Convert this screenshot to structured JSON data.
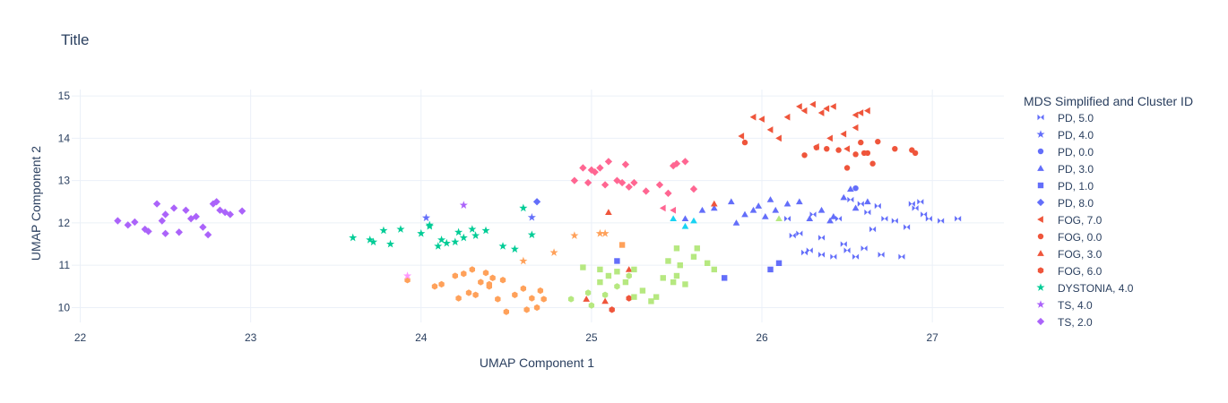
{
  "chart_data": {
    "type": "scatter",
    "title": "Title",
    "xlabel": "UMAP Component 1",
    "ylabel": "UMAP Component 2",
    "xlim": [
      21.95,
      27.42
    ],
    "ylim": [
      9.65,
      15.15
    ],
    "xticks": [
      22,
      23,
      24,
      25,
      26,
      27
    ],
    "yticks": [
      10,
      11,
      12,
      13,
      14,
      15
    ],
    "grid": true,
    "legend_title": "MDS Simplified and Cluster ID",
    "legend_position": "right",
    "series": [
      {
        "name": "PD, 5.0",
        "color": "#636efa",
        "symbol": "bowtie",
        "points": [
          [
            26.15,
            12.1
          ],
          [
            26.18,
            11.7
          ],
          [
            26.22,
            11.75
          ],
          [
            26.25,
            11.3
          ],
          [
            26.3,
            12.2
          ],
          [
            26.35,
            11.65
          ],
          [
            26.42,
            11.2
          ],
          [
            26.45,
            12.1
          ],
          [
            26.48,
            11.5
          ],
          [
            26.52,
            12.55
          ],
          [
            26.55,
            11.2
          ],
          [
            26.58,
            12.45
          ],
          [
            26.6,
            11.4
          ],
          [
            26.62,
            12.25
          ],
          [
            26.65,
            11.85
          ],
          [
            26.68,
            12.4
          ],
          [
            26.7,
            11.25
          ],
          [
            26.72,
            12.1
          ],
          [
            26.78,
            12.05
          ],
          [
            26.82,
            11.2
          ],
          [
            26.85,
            11.9
          ],
          [
            26.88,
            12.45
          ],
          [
            26.9,
            12.35
          ],
          [
            26.93,
            12.5
          ],
          [
            26.95,
            12.2
          ],
          [
            26.98,
            12.1
          ],
          [
            27.05,
            12.05
          ],
          [
            27.15,
            12.1
          ],
          [
            26.28,
            11.35
          ],
          [
            26.35,
            11.25
          ],
          [
            26.5,
            11.35
          ]
        ]
      },
      {
        "name": "PD, 4.0",
        "color": "#636efa",
        "symbol": "star",
        "points": [
          [
            24.03,
            12.12
          ],
          [
            24.65,
            12.13
          ]
        ]
      },
      {
        "name": "PD, 0.0",
        "color": "#636efa",
        "symbol": "circle",
        "points": [
          [
            26.55,
            12.82
          ]
        ]
      },
      {
        "name": "PD, 3.0",
        "color": "#636efa",
        "symbol": "triangle-up",
        "points": [
          [
            25.55,
            12.1
          ],
          [
            25.65,
            12.3
          ],
          [
            25.72,
            12.35
          ],
          [
            25.82,
            12.5
          ],
          [
            25.9,
            12.2
          ],
          [
            25.98,
            12.4
          ],
          [
            26.02,
            12.15
          ],
          [
            26.08,
            12.3
          ],
          [
            26.15,
            12.45
          ],
          [
            26.22,
            12.5
          ],
          [
            26.28,
            12.1
          ],
          [
            26.35,
            12.3
          ],
          [
            26.42,
            12.15
          ],
          [
            26.48,
            12.6
          ],
          [
            26.55,
            12.35
          ],
          [
            26.62,
            12.5
          ],
          [
            25.85,
            12.0
          ],
          [
            25.95,
            12.3
          ],
          [
            26.4,
            12.05
          ],
          [
            26.52,
            12.8
          ],
          [
            26.05,
            12.55
          ]
        ]
      },
      {
        "name": "PD, 1.0",
        "color": "#636efa",
        "symbol": "square",
        "points": [
          [
            25.15,
            11.1
          ],
          [
            25.78,
            10.7
          ],
          [
            26.05,
            10.9
          ],
          [
            26.1,
            11.05
          ]
        ]
      },
      {
        "name": "PD, 8.0",
        "color": "#636efa",
        "symbol": "diamond",
        "points": [
          [
            24.68,
            12.5
          ]
        ]
      },
      {
        "name": "FOG, 7.0",
        "color": "#ef553b",
        "symbol": "triangle-left",
        "points": [
          [
            25.95,
            14.5
          ],
          [
            26.0,
            14.45
          ],
          [
            26.05,
            14.2
          ],
          [
            26.1,
            14.0
          ],
          [
            26.15,
            14.5
          ],
          [
            26.22,
            14.75
          ],
          [
            26.25,
            14.65
          ],
          [
            26.3,
            14.8
          ],
          [
            26.35,
            14.6
          ],
          [
            26.38,
            14.7
          ],
          [
            26.42,
            14.75
          ],
          [
            26.48,
            14.1
          ],
          [
            26.55,
            14.25
          ],
          [
            26.58,
            14.6
          ],
          [
            26.62,
            14.65
          ],
          [
            26.55,
            14.55
          ],
          [
            26.4,
            14.0
          ],
          [
            26.5,
            13.75
          ],
          [
            25.88,
            14.05
          ],
          [
            26.32,
            13.8
          ]
        ]
      },
      {
        "name": "FOG, 0.0",
        "color": "#ef553b",
        "symbol": "circle",
        "points": [
          [
            25.9,
            13.9
          ],
          [
            26.25,
            13.6
          ],
          [
            26.32,
            13.78
          ],
          [
            26.38,
            13.75
          ],
          [
            26.45,
            13.72
          ],
          [
            26.5,
            13.3
          ],
          [
            26.55,
            13.62
          ],
          [
            26.58,
            13.9
          ],
          [
            26.62,
            13.65
          ],
          [
            26.65,
            13.4
          ],
          [
            26.68,
            13.92
          ],
          [
            26.78,
            13.75
          ],
          [
            26.88,
            13.72
          ],
          [
            26.9,
            13.65
          ],
          [
            26.6,
            13.65
          ]
        ]
      },
      {
        "name": "FOG, 3.0",
        "color": "#ef553b",
        "symbol": "triangle-up",
        "points": [
          [
            25.1,
            12.25
          ],
          [
            25.72,
            12.45
          ],
          [
            25.22,
            10.9
          ],
          [
            25.08,
            10.15
          ],
          [
            24.97,
            10.2
          ]
        ]
      },
      {
        "name": "FOG, 6.0",
        "color": "#ef553b",
        "symbol": "hexagon",
        "points": [
          [
            25.12,
            9.95
          ],
          [
            25.22,
            10.22
          ]
        ]
      },
      {
        "name": "DYSTONIA, 4.0",
        "color": "#00cc96",
        "symbol": "star",
        "points": [
          [
            23.6,
            11.65
          ],
          [
            23.7,
            11.6
          ],
          [
            23.72,
            11.55
          ],
          [
            23.78,
            11.82
          ],
          [
            23.82,
            11.5
          ],
          [
            23.88,
            11.85
          ],
          [
            24.0,
            11.75
          ],
          [
            24.05,
            11.92
          ],
          [
            24.1,
            11.45
          ],
          [
            24.12,
            11.6
          ],
          [
            24.15,
            11.52
          ],
          [
            24.22,
            11.78
          ],
          [
            24.25,
            11.65
          ],
          [
            24.3,
            11.85
          ],
          [
            24.32,
            11.7
          ],
          [
            24.38,
            11.82
          ],
          [
            24.48,
            11.45
          ],
          [
            24.55,
            11.38
          ],
          [
            24.6,
            12.35
          ],
          [
            24.65,
            11.72
          ],
          [
            24.2,
            11.55
          ],
          [
            24.05,
            11.95
          ]
        ]
      },
      {
        "name": "TS, 4.0",
        "color": "#ab63fa",
        "symbol": "star",
        "points": [
          [
            24.25,
            12.42
          ]
        ]
      },
      {
        "name": "TS, 2.0",
        "color": "#ab63fa",
        "symbol": "diamond",
        "points": [
          [
            22.22,
            12.05
          ],
          [
            22.28,
            11.95
          ],
          [
            22.32,
            12.02
          ],
          [
            22.38,
            11.85
          ],
          [
            22.4,
            11.8
          ],
          [
            22.45,
            12.45
          ],
          [
            22.48,
            12.05
          ],
          [
            22.5,
            12.2
          ],
          [
            22.55,
            12.35
          ],
          [
            22.58,
            11.78
          ],
          [
            22.62,
            12.3
          ],
          [
            22.65,
            12.1
          ],
          [
            22.68,
            12.15
          ],
          [
            22.72,
            11.9
          ],
          [
            22.75,
            11.72
          ],
          [
            22.78,
            12.45
          ],
          [
            22.8,
            12.5
          ],
          [
            22.82,
            12.3
          ],
          [
            22.85,
            12.25
          ],
          [
            22.88,
            12.2
          ],
          [
            22.95,
            12.28
          ],
          [
            22.5,
            11.75
          ]
        ]
      },
      {
        "name": "",
        "color": "#ffa15a",
        "symbol": "hexagon",
        "points": [
          [
            23.92,
            10.65
          ],
          [
            24.08,
            10.5
          ],
          [
            24.12,
            10.55
          ],
          [
            24.2,
            10.75
          ],
          [
            24.22,
            10.22
          ],
          [
            24.25,
            10.8
          ],
          [
            24.28,
            10.35
          ],
          [
            24.3,
            10.9
          ],
          [
            24.32,
            10.3
          ],
          [
            24.35,
            10.6
          ],
          [
            24.38,
            10.82
          ],
          [
            24.4,
            10.55
          ],
          [
            24.42,
            10.7
          ],
          [
            24.45,
            10.2
          ],
          [
            24.5,
            9.9
          ],
          [
            24.55,
            10.3
          ],
          [
            24.6,
            10.45
          ],
          [
            24.62,
            9.95
          ],
          [
            24.65,
            10.22
          ],
          [
            24.68,
            10.0
          ],
          [
            24.7,
            10.4
          ],
          [
            24.72,
            10.2
          ],
          [
            24.4,
            10.5
          ],
          [
            24.48,
            10.65
          ]
        ]
      },
      {
        "name": "",
        "color": "#ffa15a",
        "symbol": "star",
        "points": [
          [
            24.6,
            11.1
          ],
          [
            24.78,
            11.3
          ],
          [
            24.9,
            11.7
          ],
          [
            25.05,
            11.75
          ],
          [
            25.08,
            11.75
          ]
        ]
      },
      {
        "name": "",
        "color": "#ffa15a",
        "symbol": "square",
        "points": [
          [
            25.18,
            11.48
          ]
        ]
      },
      {
        "name": "",
        "color": "#19d3f3",
        "symbol": "triangle-up",
        "points": [
          [
            25.48,
            12.1
          ],
          [
            25.55,
            11.92
          ],
          [
            25.6,
            12.05
          ]
        ]
      },
      {
        "name": "",
        "color": "#ff6692",
        "symbol": "diamond",
        "points": [
          [
            24.9,
            13.0
          ],
          [
            24.95,
            13.3
          ],
          [
            24.98,
            12.95
          ],
          [
            25.0,
            13.25
          ],
          [
            25.02,
            13.2
          ],
          [
            25.05,
            13.3
          ],
          [
            25.08,
            12.9
          ],
          [
            25.1,
            13.45
          ],
          [
            25.15,
            13.0
          ],
          [
            25.18,
            12.95
          ],
          [
            25.2,
            13.38
          ],
          [
            25.22,
            12.85
          ],
          [
            25.32,
            12.75
          ],
          [
            25.4,
            12.9
          ],
          [
            25.45,
            12.7
          ],
          [
            25.48,
            13.35
          ],
          [
            25.5,
            13.4
          ],
          [
            25.55,
            13.45
          ],
          [
            25.6,
            12.8
          ],
          [
            25.25,
            12.95
          ]
        ]
      },
      {
        "name": "",
        "color": "#ff6692",
        "symbol": "triangle-left",
        "points": [
          [
            25.42,
            12.35
          ],
          [
            25.48,
            12.3
          ]
        ]
      },
      {
        "name": "",
        "color": "#ff97ff",
        "symbol": "star",
        "points": [
          [
            23.92,
            10.75
          ]
        ]
      },
      {
        "name": "",
        "color": "#b6e880",
        "symbol": "square",
        "points": [
          [
            24.95,
            10.95
          ],
          [
            25.05,
            10.9
          ],
          [
            25.1,
            10.75
          ],
          [
            25.15,
            10.85
          ],
          [
            25.2,
            10.6
          ],
          [
            25.25,
            10.9
          ],
          [
            25.3,
            10.4
          ],
          [
            25.35,
            10.15
          ],
          [
            25.38,
            10.25
          ],
          [
            25.42,
            10.7
          ],
          [
            25.45,
            11.1
          ],
          [
            25.48,
            10.6
          ],
          [
            25.5,
            10.75
          ],
          [
            25.52,
            11.0
          ],
          [
            25.55,
            10.55
          ],
          [
            25.6,
            11.2
          ],
          [
            25.62,
            11.4
          ],
          [
            25.68,
            11.05
          ],
          [
            25.72,
            10.9
          ],
          [
            25.5,
            11.4
          ],
          [
            25.05,
            10.6
          ],
          [
            25.25,
            10.25
          ]
        ]
      },
      {
        "name": "",
        "color": "#b6e880",
        "symbol": "hexagon",
        "points": [
          [
            24.88,
            10.2
          ],
          [
            24.98,
            10.35
          ],
          [
            25.0,
            10.05
          ],
          [
            25.08,
            10.3
          ],
          [
            25.15,
            10.5
          ],
          [
            25.22,
            10.75
          ]
        ]
      },
      {
        "name": "",
        "color": "#b6e880",
        "symbol": "triangle-up",
        "points": [
          [
            26.1,
            12.1
          ]
        ]
      }
    ]
  }
}
